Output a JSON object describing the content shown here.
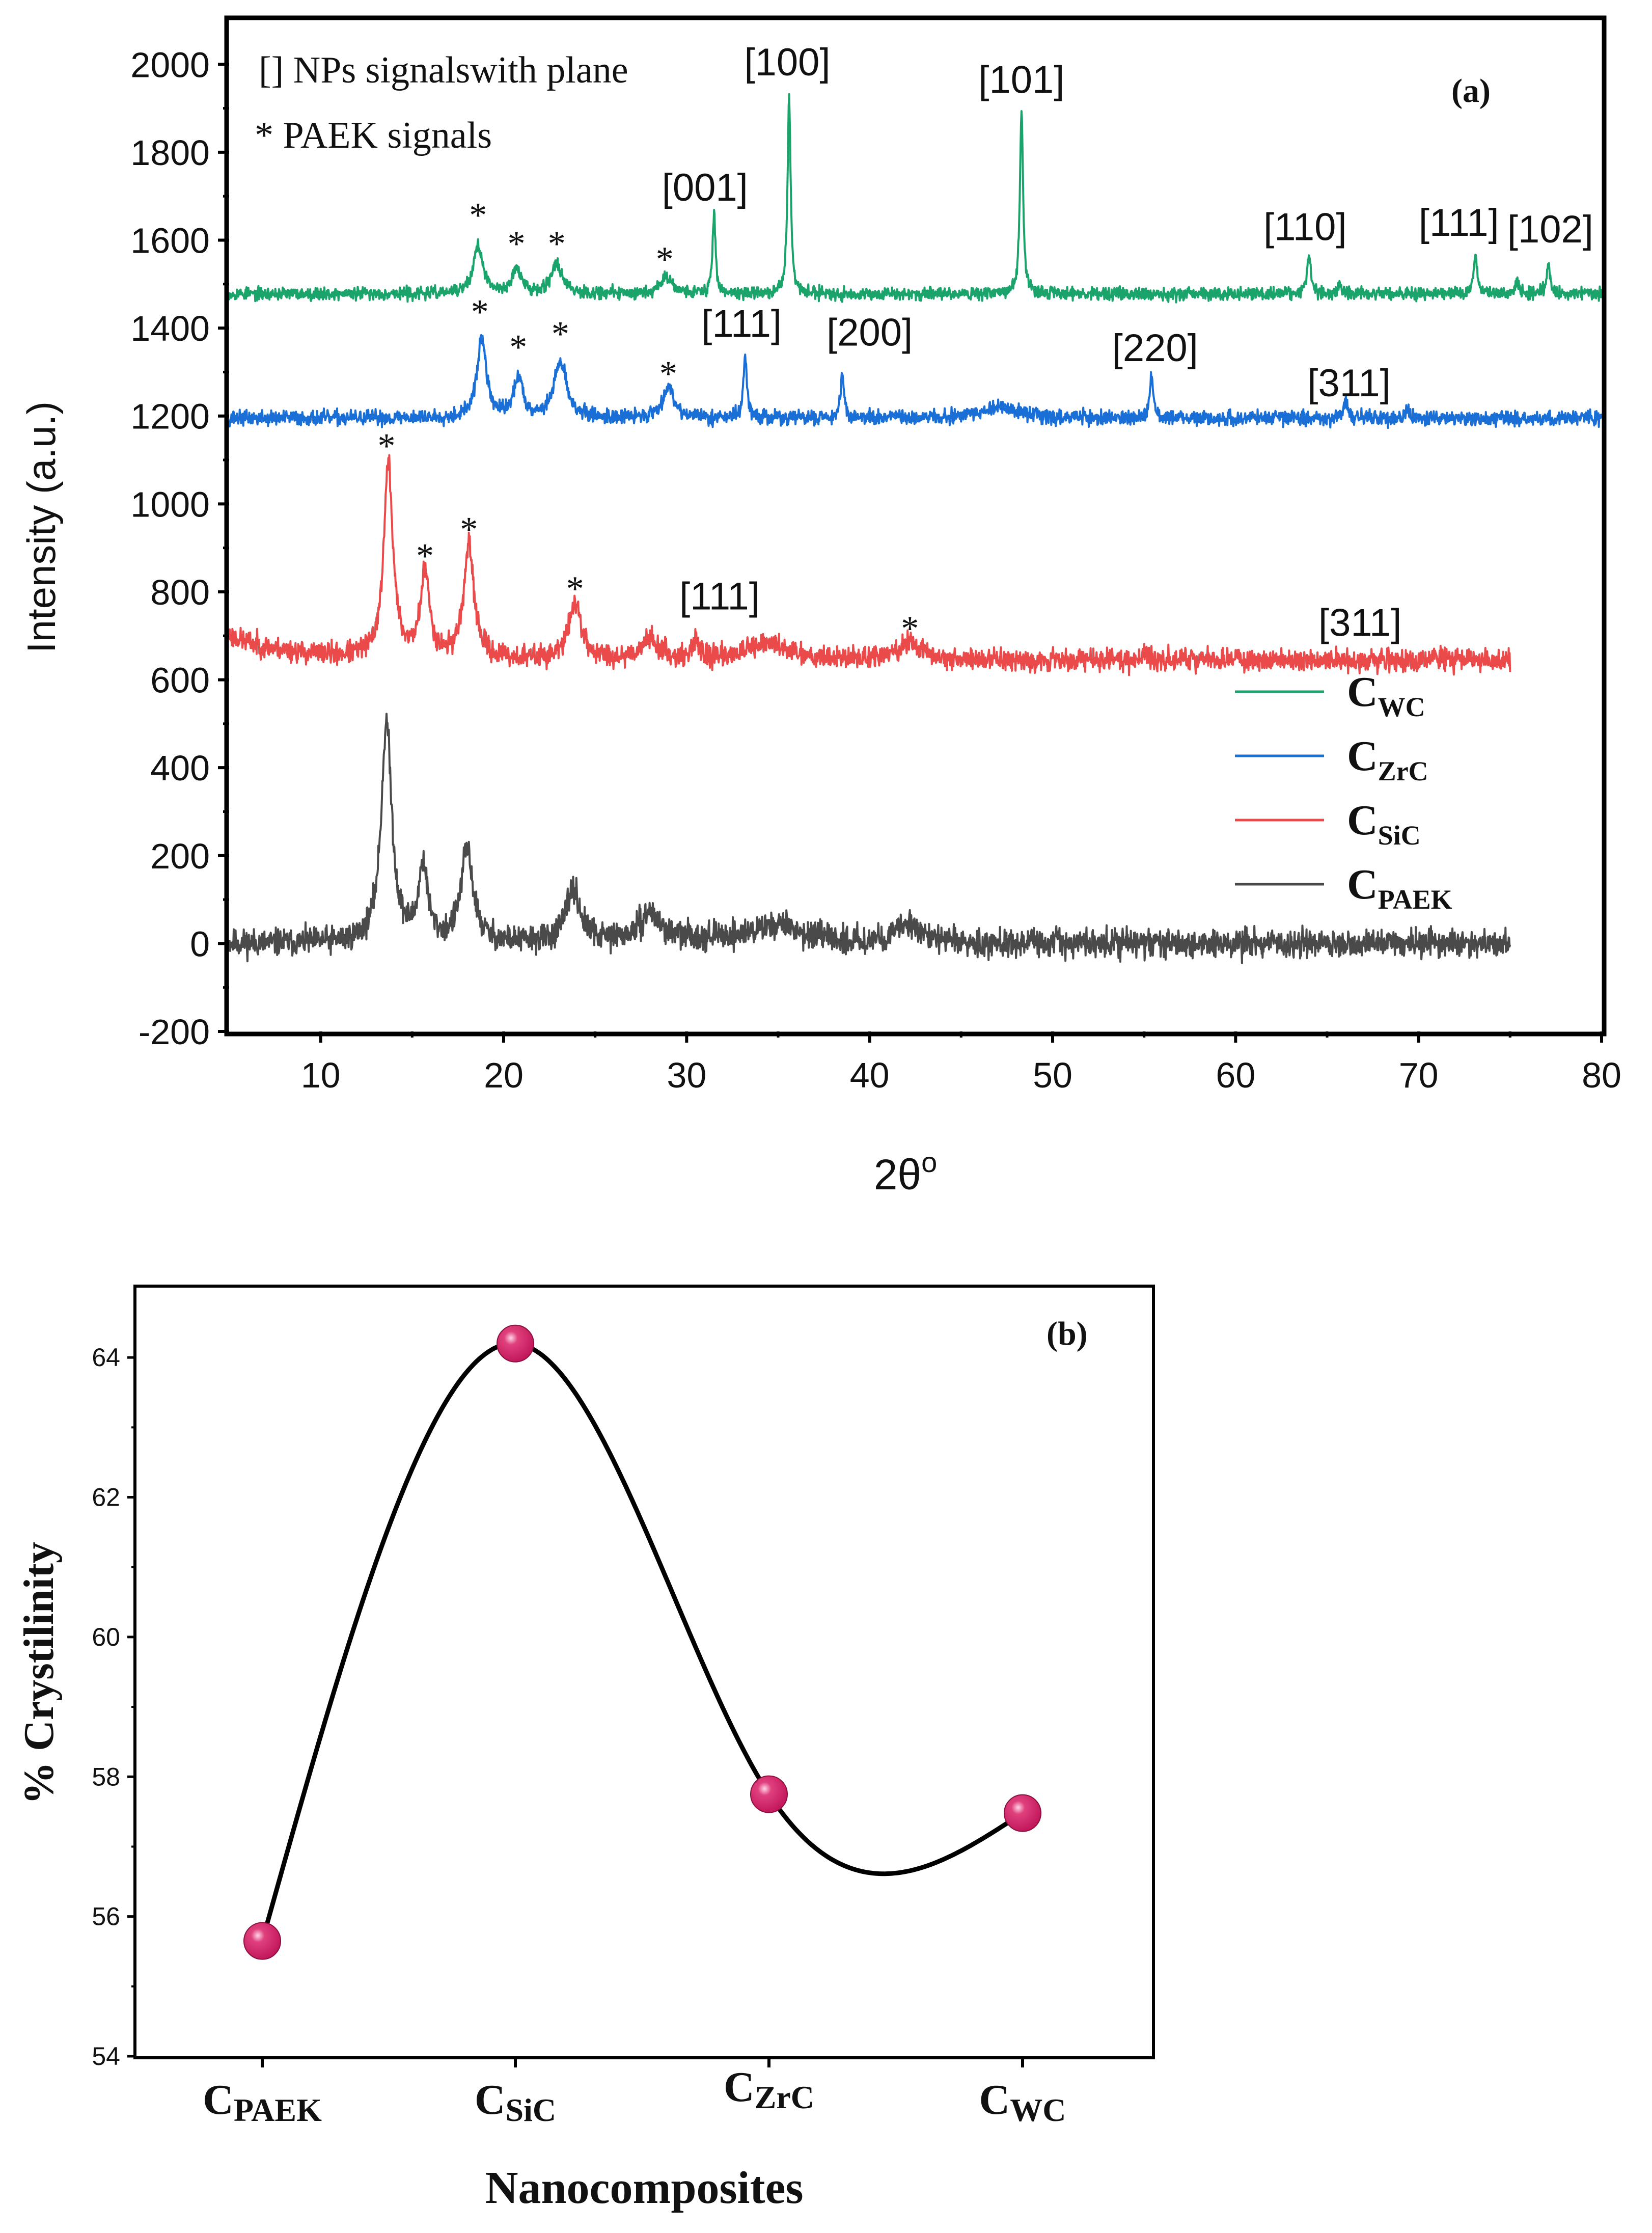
{
  "chart_data": [
    {
      "type": "line",
      "panel_label": "(a)",
      "xlabel": "2θ",
      "xlabel_sup": "o",
      "ylabel": "Intensity (a.u.)",
      "xlim": [
        5,
        80
      ],
      "ylim": [
        -200,
        2100
      ],
      "xticks": [
        "10",
        "20",
        "30",
        "40",
        "50",
        "60",
        "70",
        "80"
      ],
      "yticks": [
        "-200",
        "0",
        "200",
        "400",
        "600",
        "800",
        "1000",
        "1200",
        "1400",
        "1600",
        "1800",
        "2000"
      ],
      "key_notes": [
        "[] NPs signalswith plane",
        "* PAEK signals"
      ],
      "legend": [
        {
          "base": "C",
          "sub": "WC",
          "color": "#1aa36a"
        },
        {
          "base": "C",
          "sub": "ZrC",
          "color": "#1a6fd6"
        },
        {
          "base": "C",
          "sub": "SiC",
          "color": "#ea4a4a"
        },
        {
          "base": "C",
          "sub": "PAEK",
          "color": "#4a4a4a"
        }
      ],
      "series": [
        {
          "name": "CPAEK",
          "color": "#4a4a4a",
          "baseline": 0,
          "x_start": 5,
          "x_end": 75,
          "noise": 22,
          "seed": 11,
          "peaks": [
            [
              13.6,
              500,
              0.35
            ],
            [
              15.6,
              170,
              0.3
            ],
            [
              18.0,
              210,
              0.4
            ],
            [
              23.8,
              120,
              0.45
            ],
            [
              28.0,
              60,
              0.6
            ],
            [
              35.0,
              40,
              1.5
            ],
            [
              42.2,
              45,
              0.8
            ]
          ],
          "amorphous": [
            [
              20,
              40,
              5
            ]
          ]
        },
        {
          "name": "CSiC",
          "color": "#ea4a4a",
          "baseline": 645,
          "x_start": 5,
          "x_end": 75,
          "noise": 18,
          "seed": 23,
          "start_offset": 55,
          "peaks": [
            [
              13.7,
              440,
              0.3
            ],
            [
              15.7,
              190,
              0.3
            ],
            [
              18.1,
              250,
              0.35
            ],
            [
              23.9,
              130,
              0.4
            ],
            [
              28.0,
              45,
              0.6
            ],
            [
              30.5,
              50,
              0.15
            ],
            [
              34.5,
              35,
              1.5
            ],
            [
              42.2,
              40,
              0.7
            ],
            [
              55.0,
              20,
              0.15
            ]
          ],
          "amorphous": []
        },
        {
          "name": "CZrC",
          "color": "#1a6fd6",
          "baseline": 1195,
          "x_start": 5,
          "x_end": 80,
          "noise": 12,
          "seed": 37,
          "peaks": [
            [
              18.8,
              180,
              0.3
            ],
            [
              20.8,
              90,
              0.3
            ],
            [
              23.1,
              130,
              0.4
            ],
            [
              29.0,
              70,
              0.4
            ],
            [
              33.2,
              135,
              0.12
            ],
            [
              38.5,
              100,
              0.12
            ],
            [
              47.2,
              25,
              1.2
            ],
            [
              55.4,
              95,
              0.12
            ],
            [
              66.0,
              40,
              0.12
            ],
            [
              69.4,
              20,
              0.15
            ]
          ],
          "amorphous": []
        },
        {
          "name": "CWC",
          "color": "#1aa36a",
          "baseline": 1478,
          "x_start": 5,
          "x_end": 80,
          "noise": 10,
          "seed": 53,
          "peaks": [
            [
              18.6,
              110,
              0.3
            ],
            [
              20.7,
              55,
              0.3
            ],
            [
              22.9,
              65,
              0.4
            ],
            [
              28.9,
              40,
              0.4
            ],
            [
              31.5,
              180,
              0.1
            ],
            [
              35.6,
              450,
              0.1
            ],
            [
              48.3,
              420,
              0.1
            ],
            [
              64.0,
              90,
              0.12
            ],
            [
              65.7,
              25,
              0.1
            ],
            [
              73.1,
              90,
              0.12
            ],
            [
              75.4,
              30,
              0.1
            ],
            [
              77.1,
              65,
              0.12
            ]
          ],
          "amorphous": []
        }
      ],
      "annotations": [
        {
          "text": "[001]",
          "x": 31.0,
          "y": 1690,
          "kind": "plane"
        },
        {
          "text": "[100]",
          "x": 35.5,
          "y": 1975,
          "kind": "plane"
        },
        {
          "text": "[101]",
          "x": 48.3,
          "y": 1935,
          "kind": "plane"
        },
        {
          "text": "[110]",
          "x": 63.8,
          "y": 1600,
          "kind": "plane"
        },
        {
          "text": "[111]",
          "x": 72.2,
          "y": 1610,
          "kind": "plane"
        },
        {
          "text": "[102]",
          "x": 77.2,
          "y": 1595,
          "kind": "plane"
        },
        {
          "text": "[111]",
          "x": 33.0,
          "y": 1380,
          "kind": "plane"
        },
        {
          "text": "[200]",
          "x": 40.0,
          "y": 1360,
          "kind": "plane"
        },
        {
          "text": "[220]",
          "x": 55.6,
          "y": 1325,
          "kind": "plane"
        },
        {
          "text": "[311]",
          "x": 66.2,
          "y": 1245,
          "kind": "plane"
        },
        {
          "text": "[111]",
          "x": 31.8,
          "y": 760,
          "kind": "plane"
        },
        {
          "text": "[311]",
          "x": 66.8,
          "y": 700,
          "kind": "plane"
        },
        {
          "text": "*",
          "x": 18.6,
          "y": 1630,
          "kind": "star"
        },
        {
          "text": "*",
          "x": 20.7,
          "y": 1565,
          "kind": "star"
        },
        {
          "text": "*",
          "x": 22.9,
          "y": 1565,
          "kind": "star"
        },
        {
          "text": "*",
          "x": 28.8,
          "y": 1530,
          "kind": "star"
        },
        {
          "text": "*",
          "x": 18.7,
          "y": 1410,
          "kind": "star"
        },
        {
          "text": "*",
          "x": 20.8,
          "y": 1330,
          "kind": "star"
        },
        {
          "text": "*",
          "x": 23.1,
          "y": 1360,
          "kind": "star"
        },
        {
          "text": "*",
          "x": 29.0,
          "y": 1270,
          "kind": "star"
        },
        {
          "text": "*",
          "x": 13.6,
          "y": 1105,
          "kind": "star"
        },
        {
          "text": "*",
          "x": 15.7,
          "y": 855,
          "kind": "star"
        },
        {
          "text": "*",
          "x": 18.1,
          "y": 915,
          "kind": "star"
        },
        {
          "text": "*",
          "x": 23.9,
          "y": 780,
          "kind": "star"
        },
        {
          "text": "*",
          "x": 42.2,
          "y": 690,
          "kind": "star"
        }
      ]
    },
    {
      "type": "line",
      "panel_label": "(b)",
      "xlabel": "Nanocomposites",
      "ylabel": "% Crystilinity",
      "ylim": [
        54,
        65
      ],
      "yticks": [
        "54",
        "56",
        "58",
        "60",
        "62",
        "64"
      ],
      "categories": [
        {
          "base": "C",
          "sub": "PAEK"
        },
        {
          "base": "C",
          "sub": "SiC"
        },
        {
          "base": "C",
          "sub": "ZrC"
        },
        {
          "base": "C",
          "sub": "WC"
        }
      ],
      "values": [
        55.65,
        64.2,
        57.75,
        57.48
      ],
      "marker_color": "#c2185b",
      "curve": "smooth-spline"
    }
  ]
}
